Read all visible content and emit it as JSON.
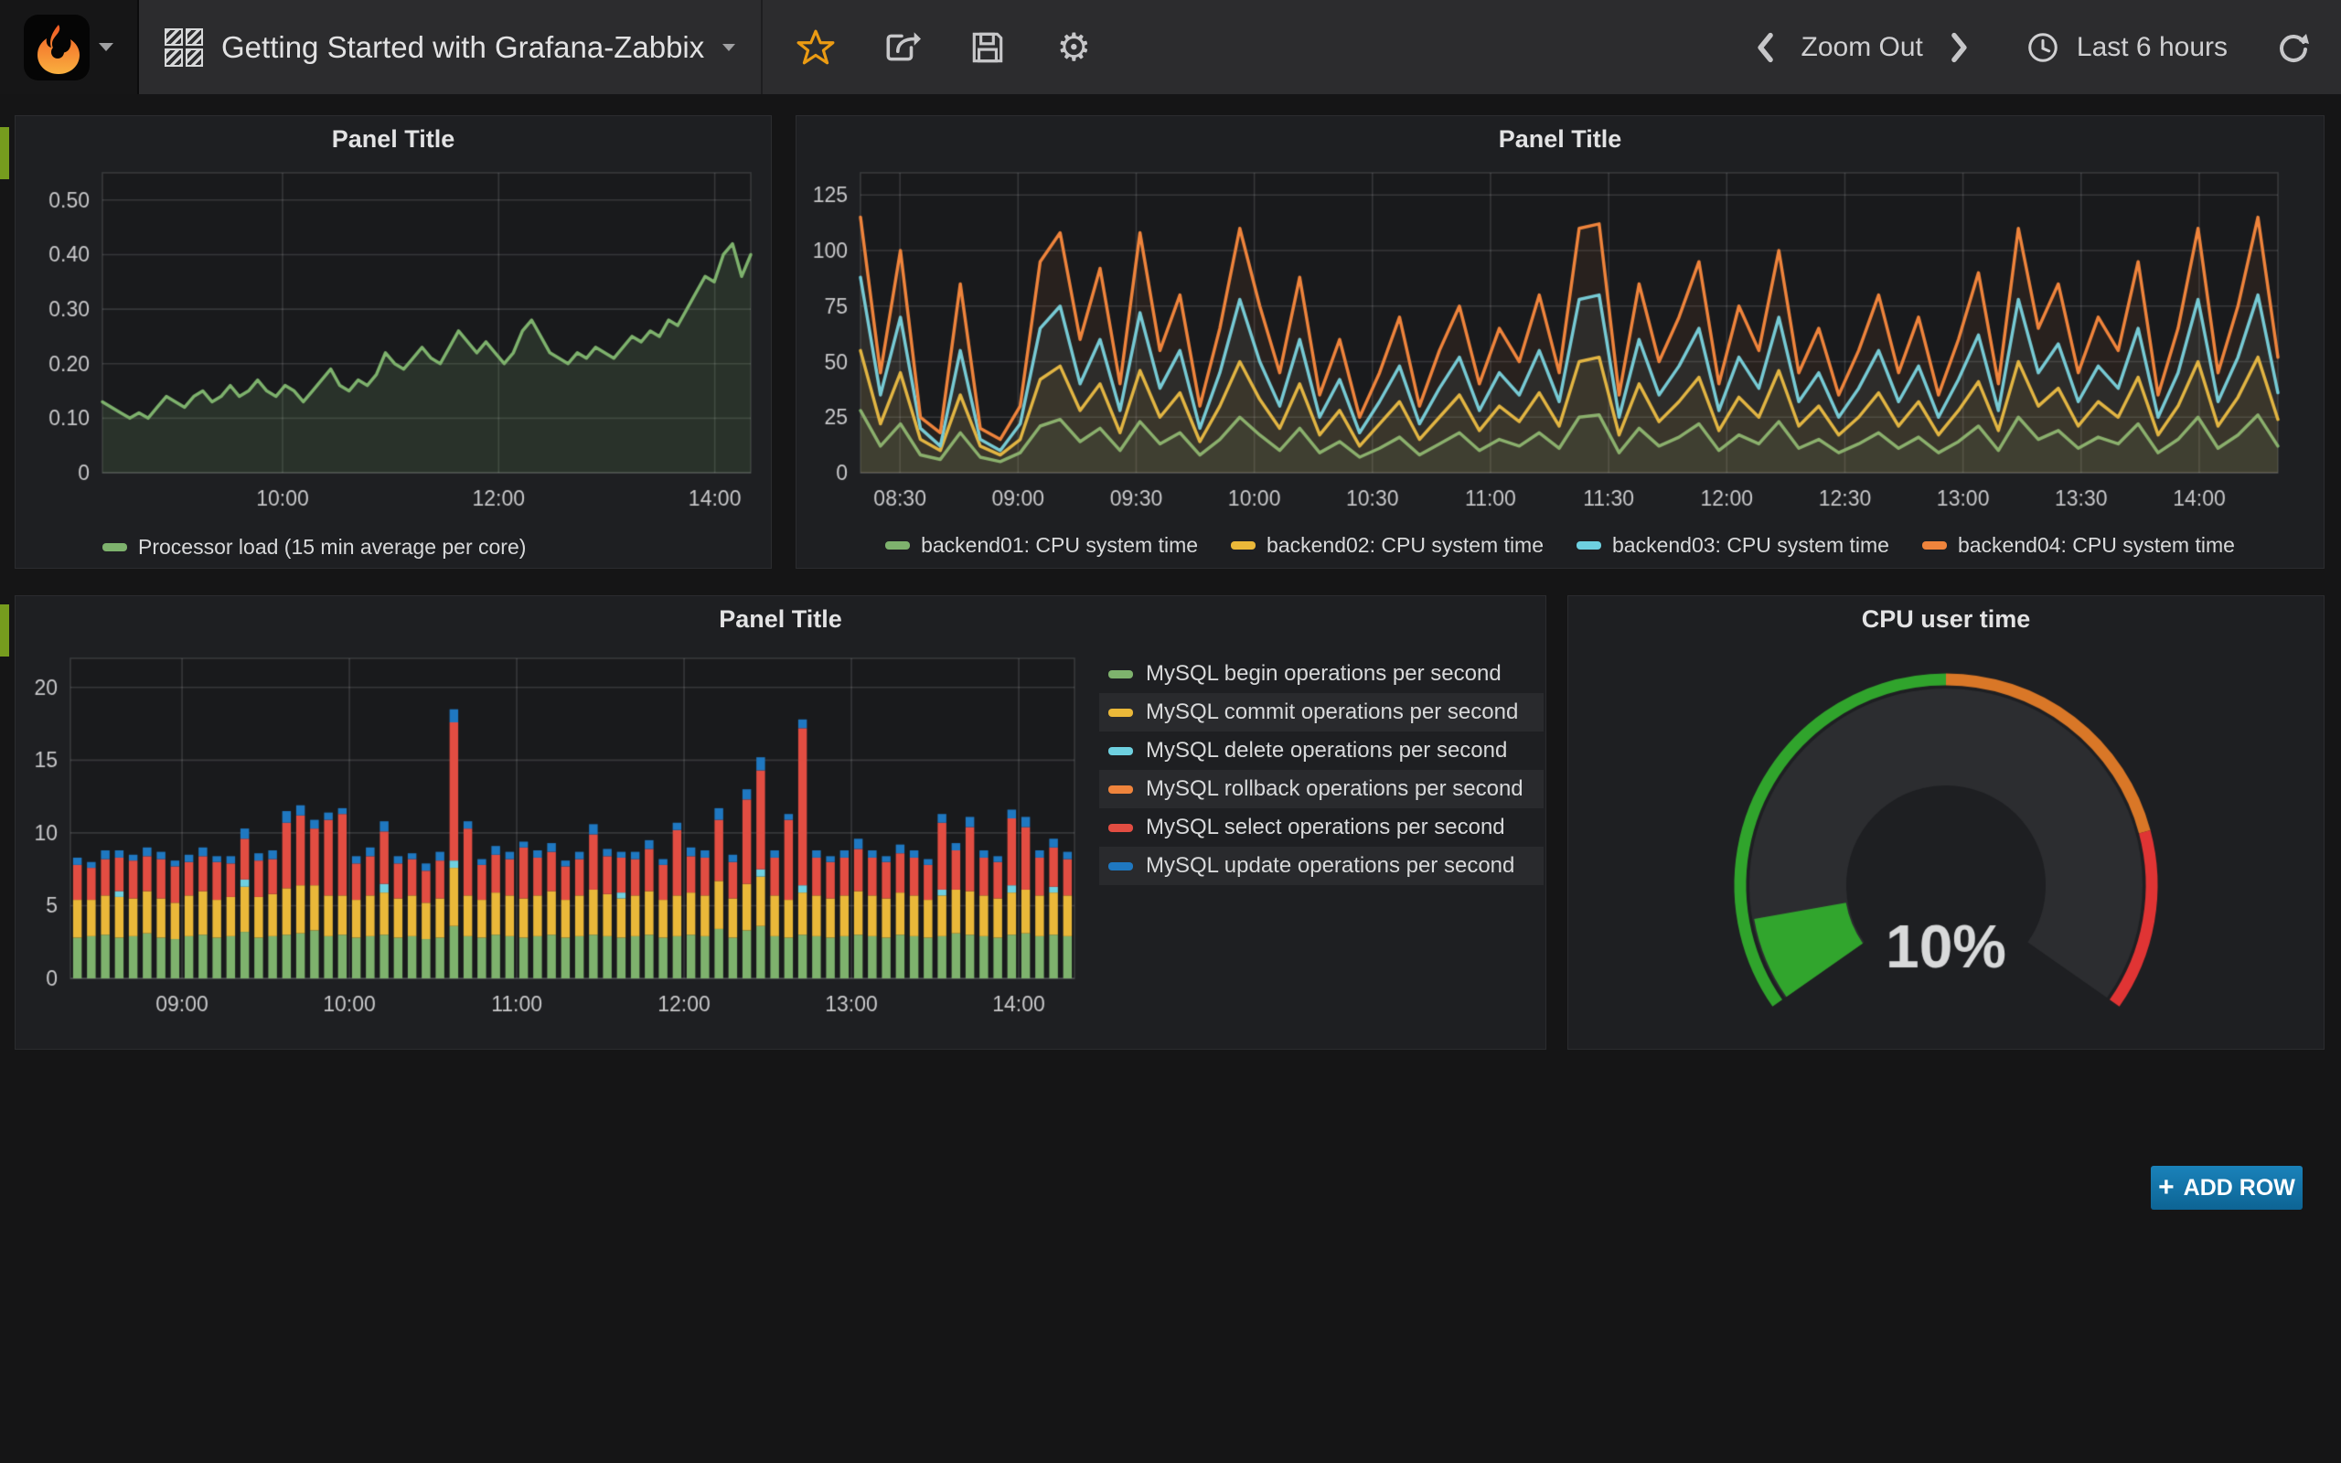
{
  "navbar": {
    "dashboard_title": "Getting Started with Grafana-Zabbix",
    "zoom_out_label": "Zoom Out",
    "time_range_label": "Last 6 hours"
  },
  "icons": {
    "brand": "grafana-logo",
    "dashboard": "dashboard-grid-icon",
    "star": "star-icon",
    "share": "share-icon",
    "save": "save-icon",
    "settings": "gear-icon",
    "chevron_left": "chevron-left-icon",
    "chevron_right": "chevron-right-icon",
    "clock": "clock-icon",
    "refresh": "refresh-icon",
    "caret": "caret-down-icon",
    "plus": "plus-icon"
  },
  "colors": {
    "green": "#7EB26D",
    "yellow": "#EAB839",
    "cyan": "#6ED0E0",
    "orange": "#EF843C",
    "red": "#E24D42",
    "blue": "#1F78C1",
    "star_accent": "#EB9B13",
    "add_row_bg": "#0f72a8",
    "row_strip": "#769c1e"
  },
  "add_row": {
    "plus": "+",
    "label": "ADD ROW"
  },
  "chart_data": [
    {
      "type": "line",
      "title": "Panel Title",
      "xlim": [
        8.333,
        14.333
      ],
      "ylim": [
        0,
        0.55
      ],
      "yticks": [
        0,
        0.1,
        0.2,
        0.3,
        0.4,
        0.5
      ],
      "ytick_labels": [
        "0",
        "0.10",
        "0.20",
        "0.30",
        "0.40",
        "0.50"
      ],
      "xticks": [
        {
          "v": 10,
          "label": "10:00"
        },
        {
          "v": 12,
          "label": "12:00"
        },
        {
          "v": 14,
          "label": "14:00"
        }
      ],
      "legend_position": "bottom-left",
      "series": [
        {
          "name": "Processor load (15 min average per core)",
          "color": "#7EB26D",
          "fill": 0.16,
          "width": 3.5,
          "values": [
            0.13,
            0.12,
            0.11,
            0.1,
            0.11,
            0.1,
            0.12,
            0.14,
            0.13,
            0.12,
            0.14,
            0.15,
            0.13,
            0.14,
            0.16,
            0.14,
            0.15,
            0.17,
            0.15,
            0.14,
            0.16,
            0.15,
            0.13,
            0.15,
            0.17,
            0.19,
            0.16,
            0.15,
            0.17,
            0.16,
            0.18,
            0.22,
            0.2,
            0.19,
            0.21,
            0.23,
            0.21,
            0.2,
            0.23,
            0.26,
            0.24,
            0.22,
            0.24,
            0.22,
            0.2,
            0.22,
            0.26,
            0.28,
            0.25,
            0.22,
            0.21,
            0.2,
            0.22,
            0.21,
            0.23,
            0.22,
            0.21,
            0.23,
            0.25,
            0.24,
            0.26,
            0.25,
            0.28,
            0.27,
            0.3,
            0.33,
            0.36,
            0.35,
            0.4,
            0.42,
            0.36,
            0.4
          ]
        }
      ]
    },
    {
      "type": "line",
      "title": "Panel Title",
      "xlim": [
        8.333,
        14.333
      ],
      "ylim": [
        0,
        135
      ],
      "yticks": [
        0,
        25,
        50,
        75,
        100,
        125
      ],
      "ytick_labels": [
        "0",
        "25",
        "50",
        "75",
        "100",
        "125"
      ],
      "xticks": [
        {
          "v": 8.5,
          "label": "08:30"
        },
        {
          "v": 9,
          "label": "09:00"
        },
        {
          "v": 9.5,
          "label": "09:30"
        },
        {
          "v": 10,
          "label": "10:00"
        },
        {
          "v": 10.5,
          "label": "10:30"
        },
        {
          "v": 11,
          "label": "11:00"
        },
        {
          "v": 11.5,
          "label": "11:30"
        },
        {
          "v": 12,
          "label": "12:00"
        },
        {
          "v": 12.5,
          "label": "12:30"
        },
        {
          "v": 13,
          "label": "13:00"
        },
        {
          "v": 13.5,
          "label": "13:30"
        },
        {
          "v": 14,
          "label": "14:00"
        }
      ],
      "legend_position": "bottom-center",
      "series": [
        {
          "name": "backend01: CPU system time",
          "color": "#7EB26D",
          "fill": 0.07,
          "width": 3.5,
          "values": [
            28,
            12,
            22,
            8,
            6,
            18,
            7,
            5,
            9,
            21,
            24,
            14,
            20,
            10,
            23,
            13,
            18,
            8,
            15,
            25,
            17,
            10,
            20,
            9,
            14,
            7,
            11,
            16,
            8,
            13,
            18,
            10,
            15,
            12,
            18,
            11,
            25,
            26,
            9,
            20,
            12,
            16,
            22,
            10,
            17,
            13,
            23,
            11,
            15,
            9,
            13,
            18,
            11,
            16,
            9,
            14,
            21,
            10,
            25,
            15,
            19,
            11,
            16,
            13,
            22,
            9,
            15,
            25,
            11,
            17,
            26,
            12
          ]
        },
        {
          "name": "backend02: CPU system time",
          "color": "#EAB839",
          "fill": 0.07,
          "width": 3.5,
          "values": [
            55,
            22,
            45,
            15,
            10,
            35,
            12,
            8,
            15,
            42,
            48,
            28,
            40,
            18,
            46,
            25,
            36,
            14,
            30,
            50,
            33,
            20,
            40,
            17,
            28,
            12,
            22,
            32,
            15,
            25,
            35,
            19,
            30,
            23,
            36,
            21,
            50,
            52,
            17,
            40,
            23,
            32,
            43,
            19,
            34,
            25,
            46,
            21,
            30,
            17,
            25,
            36,
            21,
            32,
            17,
            28,
            41,
            19,
            50,
            30,
            38,
            21,
            32,
            25,
            43,
            17,
            30,
            50,
            21,
            34,
            52,
            24
          ]
        },
        {
          "name": "backend03: CPU system time",
          "color": "#6ED0E0",
          "fill": 0.07,
          "width": 3.5,
          "values": [
            88,
            35,
            70,
            20,
            12,
            55,
            15,
            10,
            22,
            65,
            75,
            40,
            60,
            28,
            72,
            38,
            55,
            20,
            45,
            78,
            50,
            30,
            60,
            25,
            42,
            18,
            32,
            48,
            22,
            38,
            52,
            28,
            45,
            35,
            55,
            32,
            78,
            80,
            25,
            60,
            35,
            48,
            65,
            28,
            52,
            38,
            70,
            32,
            45,
            25,
            38,
            55,
            32,
            48,
            25,
            42,
            62,
            28,
            78,
            45,
            58,
            32,
            48,
            38,
            65,
            25,
            45,
            78,
            32,
            52,
            80,
            36
          ]
        },
        {
          "name": "backend04: CPU system time",
          "color": "#EF843C",
          "fill": 0.07,
          "width": 3.5,
          "values": [
            115,
            45,
            100,
            25,
            18,
            85,
            20,
            15,
            30,
            95,
            108,
            60,
            92,
            40,
            108,
            55,
            80,
            30,
            65,
            110,
            75,
            45,
            88,
            35,
            60,
            25,
            45,
            70,
            30,
            55,
            75,
            40,
            65,
            50,
            80,
            45,
            110,
            112,
            35,
            85,
            50,
            70,
            95,
            40,
            75,
            55,
            100,
            45,
            65,
            35,
            55,
            80,
            45,
            70,
            35,
            60,
            90,
            40,
            110,
            65,
            85,
            45,
            70,
            55,
            95,
            35,
            65,
            110,
            45,
            75,
            115,
            52
          ]
        }
      ]
    },
    {
      "type": "stacked-bar",
      "title": "Panel Title",
      "xlim": [
        8.333,
        14.333
      ],
      "ylim": [
        0,
        22
      ],
      "yticks": [
        0,
        5,
        10,
        15,
        20
      ],
      "ytick_labels": [
        "0",
        "5",
        "10",
        "15",
        "20"
      ],
      "xticks": [
        {
          "v": 9,
          "label": "09:00"
        },
        {
          "v": 10,
          "label": "10:00"
        },
        {
          "v": 11,
          "label": "11:00"
        },
        {
          "v": 12,
          "label": "12:00"
        },
        {
          "v": 13,
          "label": "13:00"
        },
        {
          "v": 14,
          "label": "14:00"
        }
      ],
      "legend_position": "right",
      "series": [
        {
          "name": "MySQL begin operations per second",
          "color": "#7EB26D",
          "values": [
            2.8,
            2.9,
            3.0,
            2.8,
            2.9,
            3.1,
            2.8,
            2.7,
            2.9,
            3.0,
            2.8,
            2.9,
            3.2,
            2.8,
            2.9,
            3.0,
            3.1,
            3.3,
            2.9,
            3.0,
            2.8,
            2.9,
            3.0,
            2.8,
            2.9,
            2.7,
            2.8,
            3.6,
            2.9,
            2.8,
            3.0,
            2.9,
            2.8,
            2.9,
            3.0,
            2.8,
            2.9,
            3.0,
            2.9,
            2.8,
            2.9,
            3.0,
            2.8,
            2.9,
            3.0,
            2.9,
            3.4,
            2.8,
            3.3,
            3.6,
            2.9,
            2.8,
            3.0,
            2.9,
            2.8,
            2.9,
            3.0,
            2.9,
            2.8,
            3.0,
            2.9,
            2.8,
            2.9,
            3.1,
            3.0,
            2.9,
            2.8,
            3.0,
            3.1,
            2.9,
            3.0,
            2.9
          ]
        },
        {
          "name": "MySQL commit operations per second",
          "color": "#EAB839",
          "values": [
            2.6,
            2.5,
            2.7,
            2.8,
            2.6,
            2.9,
            2.7,
            2.5,
            2.8,
            3.0,
            2.6,
            2.7,
            3.1,
            2.8,
            2.9,
            3.2,
            3.3,
            3.1,
            2.8,
            2.7,
            2.6,
            2.8,
            2.9,
            2.7,
            2.8,
            2.5,
            2.7,
            4.0,
            2.8,
            2.6,
            2.9,
            2.8,
            2.7,
            2.8,
            3.0,
            2.6,
            2.8,
            3.1,
            2.9,
            2.7,
            2.8,
            3.0,
            2.6,
            2.8,
            2.9,
            2.8,
            3.3,
            2.7,
            3.2,
            3.4,
            2.8,
            2.6,
            2.9,
            2.8,
            2.7,
            2.8,
            3.0,
            2.8,
            2.7,
            2.9,
            2.8,
            2.6,
            2.8,
            3.0,
            3.0,
            2.8,
            2.7,
            2.9,
            3.0,
            2.8,
            2.9,
            2.8
          ]
        },
        {
          "name": "MySQL delete operations per second",
          "color": "#6ED0E0",
          "values": [
            0,
            0,
            0,
            0.4,
            0,
            0,
            0,
            0,
            0,
            0,
            0,
            0,
            0.5,
            0,
            0,
            0,
            0,
            0,
            0,
            0,
            0,
            0,
            0.6,
            0,
            0,
            0,
            0,
            0.5,
            0,
            0,
            0,
            0,
            0,
            0,
            0,
            0,
            0,
            0,
            0,
            0.4,
            0,
            0,
            0,
            0,
            0,
            0,
            0,
            0,
            0,
            0.5,
            0,
            0,
            0.5,
            0,
            0,
            0,
            0,
            0,
            0,
            0,
            0,
            0,
            0.4,
            0,
            0,
            0,
            0,
            0.5,
            0,
            0,
            0.4,
            0
          ]
        },
        {
          "name": "MySQL rollback operations per second",
          "color": "#EF843C",
          "values": [
            0,
            0,
            0,
            0,
            0,
            0,
            0,
            0,
            0,
            0,
            0,
            0,
            0,
            0,
            0,
            0,
            0,
            0,
            0,
            0,
            0,
            0,
            0,
            0,
            0,
            0,
            0,
            0,
            0,
            0,
            0,
            0,
            0,
            0,
            0,
            0,
            0,
            0,
            0,
            0,
            0,
            0,
            0,
            0,
            0,
            0,
            0,
            0,
            0,
            0,
            0,
            0,
            0,
            0,
            0,
            0,
            0,
            0,
            0,
            0,
            0,
            0,
            0,
            0,
            0,
            0,
            0,
            0,
            0,
            0,
            0,
            0
          ]
        },
        {
          "name": "MySQL select operations per second",
          "color": "#E24D42",
          "values": [
            2.4,
            2.2,
            2.5,
            2.3,
            2.6,
            2.4,
            2.7,
            2.5,
            2.3,
            2.4,
            2.6,
            2.3,
            2.8,
            2.5,
            2.4,
            4.5,
            4.8,
            3.9,
            5.2,
            5.6,
            2.5,
            2.7,
            3.6,
            2.4,
            2.5,
            2.2,
            2.6,
            9.5,
            4.6,
            2.4,
            2.6,
            2.5,
            3.5,
            2.6,
            2.7,
            2.3,
            2.5,
            3.8,
            2.6,
            2.4,
            2.5,
            2.9,
            2.4,
            4.5,
            2.5,
            2.6,
            4.2,
            2.5,
            5.8,
            6.8,
            2.6,
            5.5,
            10.8,
            2.6,
            2.5,
            2.6,
            2.9,
            2.6,
            2.5,
            2.7,
            2.6,
            2.4,
            4.6,
            2.7,
            4.4,
            2.6,
            2.5,
            4.6,
            4.3,
            2.6,
            2.7,
            2.5
          ]
        },
        {
          "name": "MySQL update operations per second",
          "color": "#1F78C1",
          "values": [
            0.5,
            0.4,
            0.6,
            0.5,
            0.4,
            0.6,
            0.5,
            0.4,
            0.5,
            0.6,
            0.4,
            0.5,
            0.7,
            0.5,
            0.6,
            0.8,
            0.7,
            0.6,
            0.5,
            0.4,
            0.5,
            0.6,
            0.7,
            0.5,
            0.4,
            0.5,
            0.6,
            0.9,
            0.5,
            0.4,
            0.6,
            0.5,
            0.4,
            0.5,
            0.6,
            0.4,
            0.5,
            0.7,
            0.5,
            0.4,
            0.5,
            0.6,
            0.4,
            0.5,
            0.6,
            0.5,
            0.8,
            0.5,
            0.7,
            0.9,
            0.5,
            0.4,
            0.6,
            0.5,
            0.4,
            0.5,
            0.7,
            0.5,
            0.4,
            0.6,
            0.5,
            0.4,
            0.6,
            0.5,
            0.7,
            0.5,
            0.4,
            0.6,
            0.7,
            0.5,
            0.6,
            0.5
          ]
        }
      ]
    },
    {
      "type": "gauge",
      "title": "CPU user time",
      "min": 0,
      "max": 100,
      "value": 10,
      "display": "10%",
      "start_deg": 145,
      "sweep_deg": 250,
      "body_color": "#2c2d30",
      "text_color": "#d8d9da",
      "value_color": "rgba(50,172,45,0.95)",
      "thresholds": [
        {
          "upto": 50,
          "color": "rgba(50,172,45,0.95)"
        },
        {
          "upto": 80,
          "color": "rgba(237,129,40,0.9)"
        },
        {
          "upto": 100,
          "color": "rgba(245,54,54,0.9)"
        }
      ]
    }
  ]
}
